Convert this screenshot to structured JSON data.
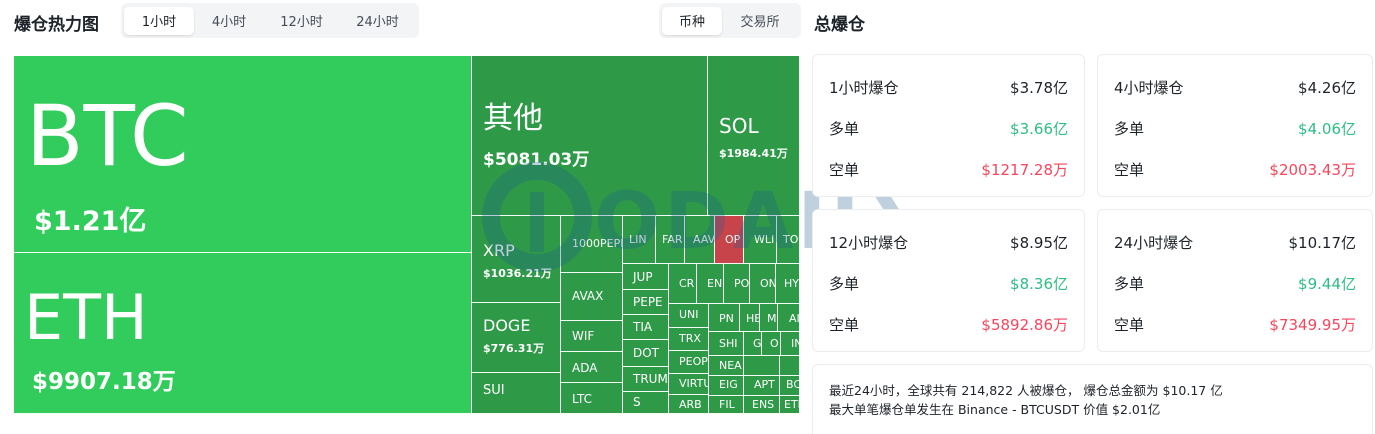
{
  "heatmap": {
    "title": "爆仓热力图",
    "time_tabs": [
      {
        "label": "1小时",
        "active": true
      },
      {
        "label": "4小时",
        "active": false
      },
      {
        "label": "12小时",
        "active": false
      },
      {
        "label": "24小时",
        "active": false
      }
    ],
    "group_tabs": [
      {
        "label": "币种",
        "active": true
      },
      {
        "label": "交易所",
        "active": false
      }
    ],
    "colors": {
      "dark": "#2e9a48",
      "bright": "#31cc5b",
      "red": "#c8444b"
    },
    "tiles": [
      {
        "symbol": "BTC",
        "amount": "$1.21亿"
      },
      {
        "symbol": "ETH",
        "amount": "$9907.18万"
      },
      {
        "symbol": "其他",
        "amount": "$5081.03万"
      },
      {
        "symbol": "SOL",
        "amount": "$1984.41万"
      },
      {
        "symbol": "XRP",
        "amount": "$1036.21万"
      },
      {
        "symbol": "DOGE",
        "amount": "$776.31万"
      },
      {
        "symbol": "SUI",
        "amount": ""
      },
      {
        "symbol": "1000PEPE",
        "amount": ""
      },
      {
        "symbol": "AVAX",
        "amount": ""
      },
      {
        "symbol": "WIF",
        "amount": ""
      },
      {
        "symbol": "ADA",
        "amount": ""
      },
      {
        "symbol": "LTC",
        "amount": ""
      },
      {
        "symbol": "LIN",
        "amount": ""
      },
      {
        "symbol": "FAR",
        "amount": ""
      },
      {
        "symbol": "AAV",
        "amount": ""
      },
      {
        "symbol": "OP",
        "amount": ""
      },
      {
        "symbol": "WLI",
        "amount": ""
      },
      {
        "symbol": "TO",
        "amount": ""
      },
      {
        "symbol": "JUP",
        "amount": ""
      },
      {
        "symbol": "PEPE",
        "amount": ""
      },
      {
        "symbol": "TIA",
        "amount": ""
      },
      {
        "symbol": "DOT",
        "amount": ""
      },
      {
        "symbol": "TRUMI",
        "amount": ""
      },
      {
        "symbol": "S",
        "amount": ""
      },
      {
        "symbol": "CR",
        "amount": ""
      },
      {
        "symbol": "EN",
        "amount": ""
      },
      {
        "symbol": "PO",
        "amount": ""
      },
      {
        "symbol": "ON",
        "amount": ""
      },
      {
        "symbol": "HY",
        "amount": ""
      },
      {
        "symbol": "UNI",
        "amount": ""
      },
      {
        "symbol": "TRX",
        "amount": ""
      },
      {
        "symbol": "PEOP",
        "amount": ""
      },
      {
        "symbol": "VIRTU",
        "amount": ""
      },
      {
        "symbol": "ARB",
        "amount": ""
      },
      {
        "symbol": "PN",
        "amount": ""
      },
      {
        "symbol": "HE",
        "amount": ""
      },
      {
        "symbol": "M",
        "amount": ""
      },
      {
        "symbol": "AI",
        "amount": ""
      },
      {
        "symbol": "SHI",
        "amount": ""
      },
      {
        "symbol": "G",
        "amount": ""
      },
      {
        "symbol": "O",
        "amount": ""
      },
      {
        "symbol": "IN",
        "amount": ""
      },
      {
        "symbol": "NEA",
        "amount": ""
      },
      {
        "symbol": "EIG",
        "amount": ""
      },
      {
        "symbol": "FIL",
        "amount": ""
      },
      {
        "symbol": "APT",
        "amount": ""
      },
      {
        "symbol": "ENS",
        "amount": ""
      },
      {
        "symbol": "ETH",
        "amount": ""
      },
      {
        "symbol": "BC",
        "amount": ""
      }
    ]
  },
  "total": {
    "title": "总爆仓",
    "cards": [
      {
        "title": "1小时爆仓",
        "total": "$3.78亿",
        "long_label": "多单",
        "long": "$3.66亿",
        "short_label": "空单",
        "short": "$1217.28万"
      },
      {
        "title": "4小时爆仓",
        "total": "$4.26亿",
        "long_label": "多单",
        "long": "$4.06亿",
        "short_label": "空单",
        "short": "$2003.43万"
      },
      {
        "title": "12小时爆仓",
        "total": "$8.95亿",
        "long_label": "多单",
        "long": "$8.36亿",
        "short_label": "空单",
        "short": "$5892.86万"
      },
      {
        "title": "24小时爆仓",
        "total": "$10.17亿",
        "long_label": "多单",
        "long": "$9.44亿",
        "short_label": "空单",
        "short": "$7349.95万"
      }
    ],
    "summary_line1": "最近24小时，全球共有 214,822 人被爆仓， 爆仓总金额为 $10.17 亿",
    "summary_line2": "最大单笔爆仓单发生在 Binance - BTCUSDT 价值 $2.01亿"
  },
  "watermark": {
    "text": "ODAILY",
    "icon": "odaily-logo-icon"
  }
}
